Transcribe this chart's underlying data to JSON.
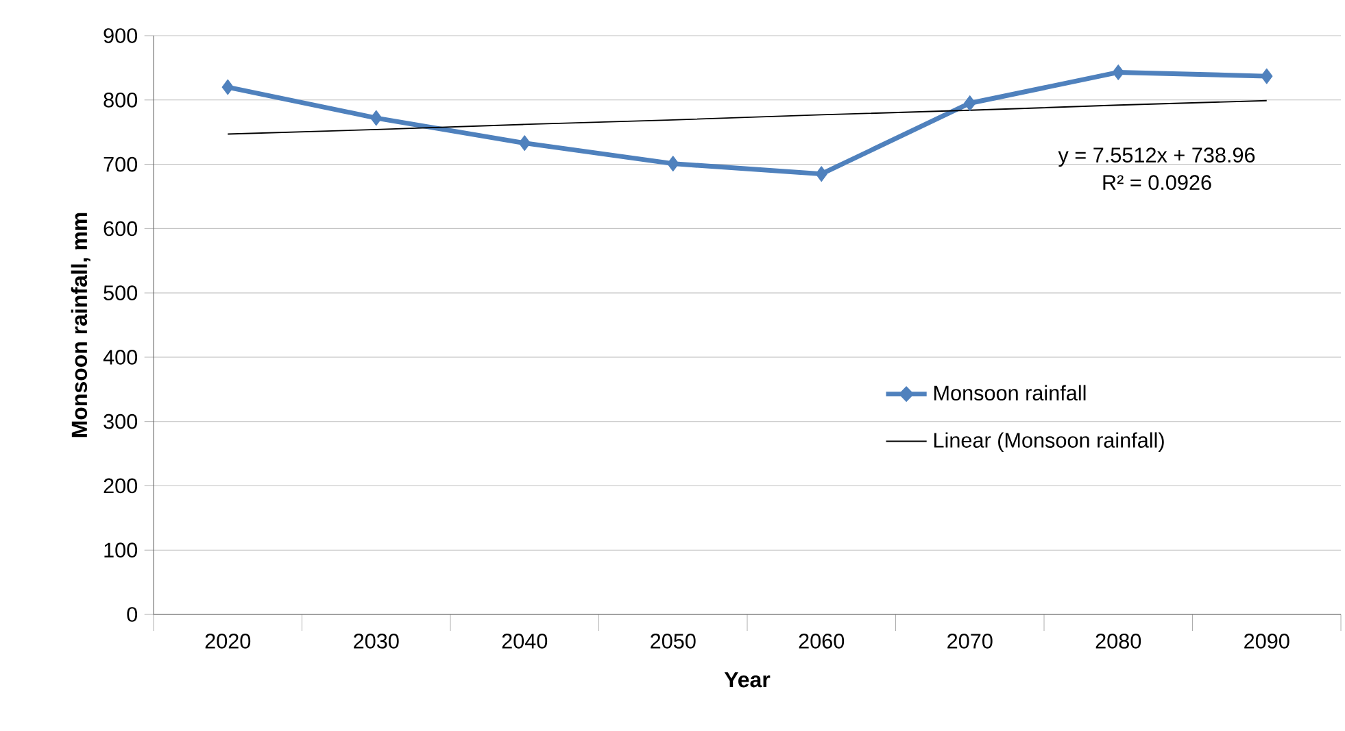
{
  "chart_data": {
    "type": "line",
    "xlabel": "Year",
    "ylabel": "Monsoon rainfall, mm",
    "categories": [
      "2020",
      "2030",
      "2040",
      "2050",
      "2060",
      "2070",
      "2080",
      "2090"
    ],
    "series": [
      {
        "name": "Monsoon rainfall",
        "color": "#4f81bd",
        "values": [
          820,
          772,
          733,
          701,
          685,
          795,
          843,
          837
        ]
      },
      {
        "name": "Linear (Monsoon rainfall)",
        "color": "#000000",
        "marker": "none",
        "values": [
          747,
          754,
          762,
          769,
          777,
          784,
          792,
          799
        ]
      }
    ],
    "ylim": [
      0,
      900
    ],
    "yticks": [
      0,
      100,
      200,
      300,
      400,
      500,
      600,
      700,
      800,
      900
    ],
    "grid": "y",
    "legend": "right",
    "marker": "diamond",
    "annotations": [
      "y = 7.5512x + 738.96",
      "R² = 0.0926"
    ]
  }
}
